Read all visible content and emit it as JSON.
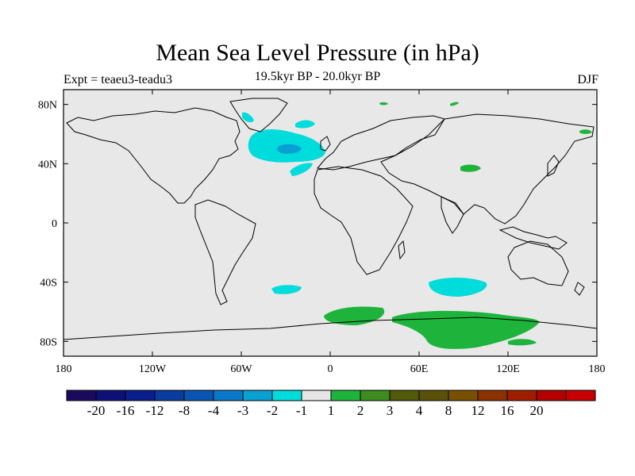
{
  "title": "Mean Sea Level Pressure (in hPa)",
  "experiment_label": "Expt = teaeu3-teadu3",
  "period_label": "19.5kyr BP - 20.0kyr BP",
  "season_label": "DJF",
  "map": {
    "background": "#e8e8e8",
    "lon_ticks": [
      "180",
      "120W",
      "60W",
      "0",
      "60E",
      "120E",
      "180"
    ],
    "lat_ticks": [
      "80N",
      "40N",
      "0",
      "40S",
      "80S"
    ]
  },
  "colorbar": {
    "colors": [
      "#1a0a5e",
      "#0f0f78",
      "#0a1e8c",
      "#0a3ca0",
      "#0a55b4",
      "#0a78c8",
      "#0aa0d2",
      "#00dcdc",
      "#e6e6e6",
      "#1eb43c",
      "#3c8c1e",
      "#505a0a",
      "#5a500a",
      "#785000",
      "#8c3200",
      "#a01e00",
      "#b40000",
      "#c80000"
    ],
    "labels": [
      "-20",
      "-16",
      "-12",
      "-8",
      "-4",
      "-3",
      "-2",
      "-1",
      "1",
      "2",
      "3",
      "4",
      "8",
      "12",
      "16",
      "20"
    ]
  },
  "anomalies": [
    {
      "name": "north-atlantic-low",
      "color": "#00dcdc",
      "core_color": "#0aa0d2"
    },
    {
      "name": "south-indian-low",
      "color": "#00dcdc"
    },
    {
      "name": "south-atlantic-low",
      "color": "#00dcdc"
    },
    {
      "name": "southern-ocean-high",
      "color": "#1eb43c"
    },
    {
      "name": "antarctic-high",
      "color": "#1eb43c"
    },
    {
      "name": "asia-high",
      "color": "#1eb43c"
    }
  ]
}
